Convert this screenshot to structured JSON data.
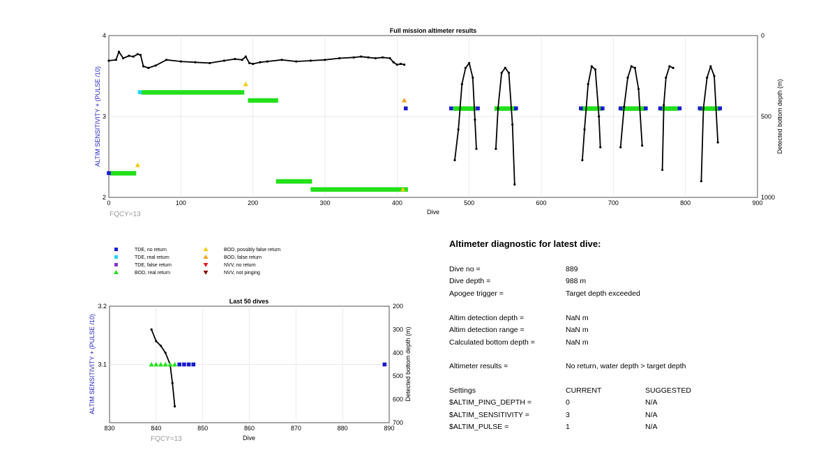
{
  "colors": {
    "tde_no_return": "#1a1ad0",
    "tde_real_return": "#22d4ff",
    "tde_false_return": "#8a33cc",
    "bod_real_return": "#22e01a",
    "bod_possibly_false": "#f2cc0d",
    "bod_false_return": "#f0a010",
    "nvv_no_return": "#e01a1a",
    "nvv_not_pinging": "#8a1010",
    "depth_trace": "#000000",
    "axis_label": "#2222c8",
    "fqcy_text": "#9a9a9a"
  },
  "legend": {
    "tde_no_return": "TDE, no return",
    "tde_real_return": "TDE, real return",
    "tde_false_return": "TDE, false return",
    "bod_real_return": "BOD, real return",
    "bod_possibly_false": "BOD, possibly false return",
    "bod_false_return": "BOD, false return",
    "nvv_no_return": "NVV, no return",
    "nvv_not_pinging": "NVV, not pinging"
  },
  "diagnostic": {
    "title": "Altimeter diagnostic for latest dive:",
    "dive_no_label": "Dive no =",
    "dive_no": "889",
    "dive_depth_label": "Dive depth =",
    "dive_depth": "988 m",
    "apogee_label": "Apogee trigger =",
    "apogee": "Target depth exceeded",
    "det_depth_label": "Altim detection depth =",
    "det_depth": "NaN m",
    "det_range_label": "Altim detection range =",
    "det_range": "NaN m",
    "calc_bottom_label": "Calculated bottom depth =",
    "calc_bottom": "NaN m",
    "results_label": "Altimeter results =",
    "results": "No return, water depth > target depth",
    "settings_header": "Settings",
    "current_header": "CURRENT",
    "suggested_header": "SUGGESTED",
    "ping_depth_label": "$ALTIM_PING_DEPTH =",
    "ping_depth_current": "0",
    "ping_depth_suggested": "N/A",
    "sensitivity_label": "$ALTIM_SENSITIVITY =",
    "sensitivity_current": "3",
    "sensitivity_suggested": "N/A",
    "pulse_label": "$ALTIM_PULSE =",
    "pulse_current": "1",
    "pulse_suggested": "N/A"
  },
  "chart_data": [
    {
      "type": "scatter",
      "title": "Full mission altimeter results",
      "xlabel": "Dive",
      "ylabel": "ALTIM SENSITIVITY + (PULSE /10)",
      "y2label": "Detected bottom depth (m)",
      "annotation": "FQCY=13",
      "xlim": [
        0,
        900
      ],
      "ylim": [
        2,
        4
      ],
      "y2lim": [
        0,
        1000
      ],
      "y2_reversed": true,
      "xticks": [
        0,
        100,
        200,
        300,
        400,
        500,
        600,
        700,
        800,
        900
      ],
      "yticks": [
        2,
        3,
        4
      ],
      "y2ticks": [
        0,
        500,
        1000
      ],
      "grid": true,
      "segments": [
        {
          "category": "bod_real_return",
          "x_start": 45,
          "x_end": 188,
          "y": 3.3
        },
        {
          "category": "bod_real_return",
          "x_start": 193,
          "x_end": 235,
          "y": 3.2
        },
        {
          "category": "bod_real_return",
          "x_start": 2,
          "x_end": 38,
          "y": 2.3
        },
        {
          "category": "bod_real_return",
          "x_start": 232,
          "x_end": 282,
          "y": 2.2
        },
        {
          "category": "bod_real_return",
          "x_start": 280,
          "x_end": 415,
          "y": 2.1
        },
        {
          "category": "bod_real_return",
          "x_start": 478,
          "x_end": 510,
          "y": 3.1
        },
        {
          "category": "bod_real_return",
          "x_start": 535,
          "x_end": 565,
          "y": 3.1
        },
        {
          "category": "bod_real_return",
          "x_start": 655,
          "x_end": 685,
          "y": 3.1
        },
        {
          "category": "bod_real_return",
          "x_start": 710,
          "x_end": 745,
          "y": 3.1
        },
        {
          "category": "bod_real_return",
          "x_start": 765,
          "x_end": 790,
          "y": 3.1
        },
        {
          "category": "bod_real_return",
          "x_start": 820,
          "x_end": 848,
          "y": 3.1
        }
      ],
      "points": [
        {
          "category": "tde_real_return",
          "x": 43,
          "y": 3.3
        },
        {
          "category": "tde_no_return",
          "x": 0,
          "y": 2.3
        },
        {
          "category": "bod_possibly_false",
          "x": 190,
          "y": 3.4
        },
        {
          "category": "bod_possibly_false",
          "x": 40,
          "y": 2.4
        },
        {
          "category": "bod_possibly_false",
          "x": 408,
          "y": 2.1
        },
        {
          "category": "bod_false_return",
          "x": 410,
          "y": 3.2
        },
        {
          "category": "tde_no_return",
          "x": 412,
          "y": 3.1
        },
        {
          "category": "tde_no_return",
          "x": 475,
          "y": 3.1
        },
        {
          "category": "tde_no_return",
          "x": 512,
          "y": 3.1
        },
        {
          "category": "tde_no_return",
          "x": 565,
          "y": 3.1
        },
        {
          "category": "tde_no_return",
          "x": 655,
          "y": 3.1
        },
        {
          "category": "tde_no_return",
          "x": 685,
          "y": 3.1
        },
        {
          "category": "tde_no_return",
          "x": 710,
          "y": 3.1
        },
        {
          "category": "tde_no_return",
          "x": 745,
          "y": 3.1
        },
        {
          "category": "tde_no_return",
          "x": 765,
          "y": 3.1
        },
        {
          "category": "tde_no_return",
          "x": 792,
          "y": 3.1
        },
        {
          "category": "tde_no_return",
          "x": 820,
          "y": 3.1
        },
        {
          "category": "tde_no_return",
          "x": 848,
          "y": 3.1
        }
      ],
      "depth_series": [
        {
          "x": [
            0,
            10,
            14,
            20,
            28,
            34,
            40,
            44,
            48,
            55,
            65,
            80,
            100,
            120,
            140,
            160,
            175,
            185,
            190,
            195,
            200,
            210,
            220,
            240,
            260,
            280,
            300,
            320,
            340,
            350,
            360,
            370,
            380,
            390,
            395,
            400,
            405,
            410
          ],
          "y": [
            155,
            150,
            100,
            140,
            125,
            130,
            115,
            120,
            190,
            200,
            185,
            150,
            160,
            165,
            170,
            155,
            145,
            150,
            130,
            170,
            175,
            165,
            160,
            150,
            160,
            155,
            150,
            140,
            135,
            130,
            135,
            140,
            135,
            140,
            165,
            180,
            175,
            180
          ]
        },
        {
          "x": [
            480,
            485,
            490,
            495,
            500,
            505,
            508,
            510
          ],
          "y": [
            770,
            580,
            300,
            200,
            170,
            260,
            520,
            700
          ]
        },
        {
          "x": [
            537,
            540,
            545,
            550,
            555,
            560,
            563
          ],
          "y": [
            700,
            450,
            230,
            200,
            230,
            550,
            920
          ]
        },
        {
          "x": [
            657,
            660,
            665,
            670,
            675,
            680,
            682
          ],
          "y": [
            770,
            580,
            300,
            190,
            210,
            500,
            690
          ]
        },
        {
          "x": [
            710,
            715,
            720,
            725,
            730,
            735,
            740
          ],
          "y": [
            690,
            440,
            260,
            190,
            200,
            330,
            680
          ]
        },
        {
          "x": [
            768,
            770,
            773,
            778,
            783
          ],
          "y": [
            830,
            430,
            260,
            190,
            200
          ]
        },
        {
          "x": [
            822,
            825,
            830,
            835,
            840,
            845
          ],
          "y": [
            900,
            450,
            260,
            190,
            250,
            660
          ]
        }
      ]
    },
    {
      "type": "scatter",
      "title": "Last 50 dives",
      "xlabel": "Dive",
      "ylabel": "ALTIM SENSITIVITY + (PULSE /10)",
      "y2label": "Detected bottom depth (m)",
      "annotation": "FQCY=13",
      "xlim": [
        830,
        890
      ],
      "ylim": [
        3.0,
        3.2
      ],
      "y2lim": [
        200,
        700
      ],
      "y2_reversed": true,
      "xticks": [
        830,
        840,
        850,
        860,
        870,
        880,
        890
      ],
      "yticks": [
        3.1,
        3.2
      ],
      "y2ticks": [
        200,
        300,
        400,
        500,
        600,
        700
      ],
      "grid": true,
      "points": [
        {
          "category": "bod_real_return",
          "x": 839,
          "y": 3.1
        },
        {
          "category": "bod_real_return",
          "x": 840,
          "y": 3.1
        },
        {
          "category": "bod_real_return",
          "x": 841,
          "y": 3.1
        },
        {
          "category": "bod_real_return",
          "x": 842,
          "y": 3.1
        },
        {
          "category": "bod_real_return",
          "x": 843,
          "y": 3.1
        },
        {
          "category": "bod_real_return",
          "x": 844,
          "y": 3.1
        },
        {
          "category": "tde_no_return",
          "x": 845,
          "y": 3.1
        },
        {
          "category": "tde_no_return",
          "x": 846,
          "y": 3.1
        },
        {
          "category": "tde_no_return",
          "x": 847,
          "y": 3.1
        },
        {
          "category": "tde_no_return",
          "x": 848,
          "y": 3.1
        },
        {
          "category": "tde_no_return",
          "x": 889,
          "y": 3.1
        }
      ],
      "depth_series": [
        {
          "x": [
            839,
            840,
            841,
            842,
            843,
            843.5,
            844
          ],
          "y": [
            300,
            350,
            370,
            400,
            450,
            530,
            630
          ]
        }
      ]
    }
  ]
}
